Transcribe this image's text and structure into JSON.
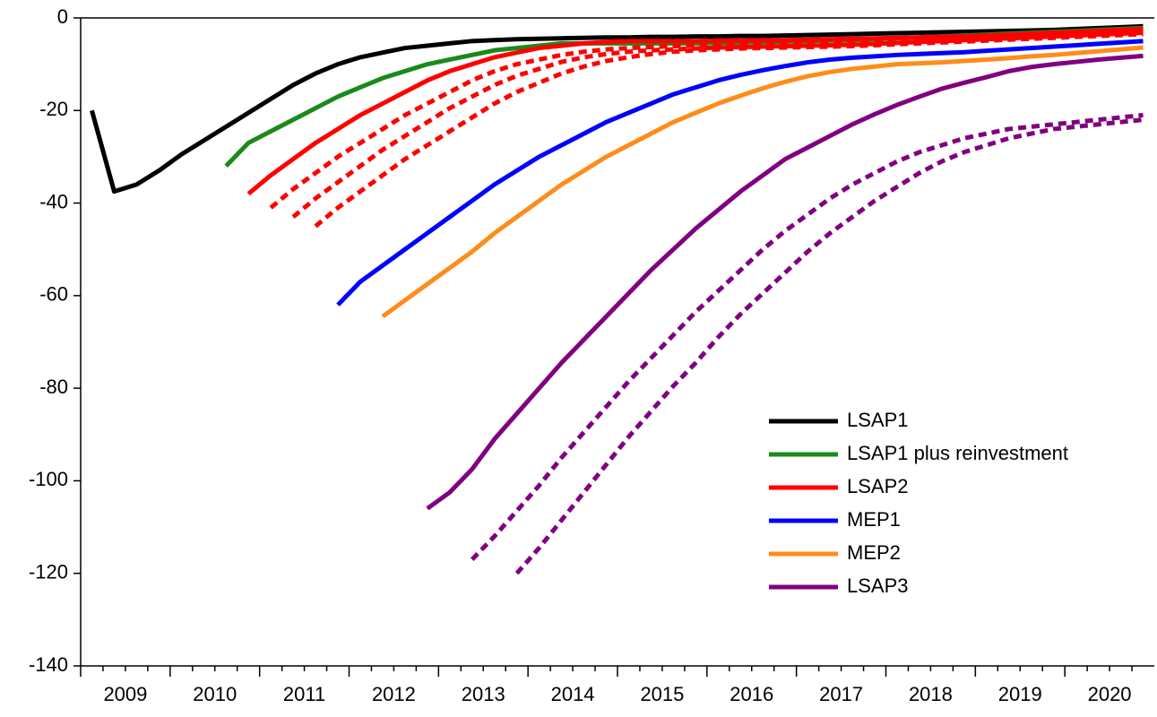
{
  "chart_data": {
    "type": "line",
    "x": [
      2009.125,
      2009.375,
      2009.625,
      2009.875,
      2010.125,
      2010.375,
      2010.625,
      2010.875,
      2011.125,
      2011.375,
      2011.625,
      2011.875,
      2012.125,
      2012.375,
      2012.625,
      2012.875,
      2013.125,
      2013.375,
      2013.625,
      2013.875,
      2014.125,
      2014.375,
      2014.625,
      2014.875,
      2015.125,
      2015.375,
      2015.625,
      2015.875,
      2016.125,
      2016.375,
      2016.625,
      2016.875,
      2017.125,
      2017.375,
      2017.625,
      2017.875,
      2018.125,
      2018.375,
      2018.625,
      2018.875,
      2019.125,
      2019.375,
      2019.625,
      2019.875,
      2020.125,
      2020.375,
      2020.625,
      2020.875
    ],
    "xlim": [
      2009,
      2021
    ],
    "xticks": [
      2009,
      2010,
      2011,
      2012,
      2013,
      2014,
      2015,
      2016,
      2017,
      2018,
      2019,
      2020
    ],
    "ylim": [
      -140,
      0
    ],
    "yticks": [
      -140,
      -120,
      -100,
      -80,
      -60,
      -40,
      -20,
      0
    ],
    "grid": false,
    "legend": "lower right",
    "series": [
      {
        "name": "LSAP1",
        "color": "#000000",
        "values": [
          -20,
          -37.5,
          -36,
          -33,
          -29.5,
          -26.5,
          -23.5,
          -20.5,
          -17.5,
          -14.5,
          -12,
          -10,
          -8.5,
          -7.5,
          -6.5,
          -6,
          -5.5,
          -5,
          -4.8,
          -4.6,
          -4.5,
          -4.4,
          -4.3,
          -4.2,
          -4.2,
          -4.1,
          -4.1,
          -4,
          -4,
          -3.9,
          -3.9,
          -3.8,
          -3.7,
          -3.6,
          -3.5,
          -3.4,
          -3.3,
          -3.2,
          -3.1,
          -3,
          -2.9,
          -2.8,
          -2.7,
          -2.6,
          -2.4,
          -2.2,
          -2,
          -1.8
        ]
      },
      {
        "name": "LSAP1 plus reinvestment",
        "color": "#1a8a1a",
        "values": [
          null,
          null,
          null,
          null,
          null,
          null,
          -32,
          -27,
          -24.5,
          -22,
          -19.5,
          -17,
          -15,
          -13,
          -11.5,
          -10,
          -9,
          -8,
          -7,
          -6.5,
          -6,
          -5.5,
          -5.5,
          -5.5,
          -5.5,
          -5.5,
          -5.5,
          -5.5,
          -5.4,
          -5.3,
          -5.2,
          -5.1,
          -5,
          -4.9,
          -4.8,
          -4.6,
          -4.4,
          -4.2,
          -4,
          -3.8,
          -3.6,
          -3.4,
          -3.2,
          -3,
          -2.8,
          -2.6,
          -2.4,
          -2.2
        ]
      },
      {
        "name": "LSAP2",
        "color": "#ff0000",
        "values": [
          null,
          null,
          null,
          null,
          null,
          null,
          null,
          -38,
          -34,
          -30.5,
          -27,
          -24,
          -21,
          -18.5,
          -16,
          -13.5,
          -11.5,
          -10,
          -8.5,
          -7.5,
          -6.5,
          -6,
          -5.5,
          -5.2,
          -5,
          -5,
          -5,
          -5,
          -4.9,
          -4.9,
          -4.8,
          -4.8,
          -4.7,
          -4.6,
          -4.5,
          -4.4,
          -4.3,
          -4.2,
          -4.1,
          -4,
          -3.8,
          -3.6,
          -3.4,
          -3.2,
          -3,
          -2.8,
          -2.6,
          -2.4
        ]
      },
      {
        "color": "#ff0000",
        "dashed": true,
        "values": [
          null,
          null,
          null,
          null,
          null,
          null,
          null,
          null,
          -41,
          -37,
          -33.5,
          -30,
          -27,
          -24,
          -21,
          -18.5,
          -16,
          -13.5,
          -11.5,
          -10,
          -9,
          -8,
          -7.3,
          -6.8,
          -6.5,
          -6.3,
          -6.1,
          -6,
          -5.9,
          -5.8,
          -5.7,
          -5.6,
          -5.5,
          -5.4,
          -5.3,
          -5.2,
          -5,
          -4.8,
          -4.6,
          -4.4,
          -4.2,
          -4,
          -3.8,
          -3.6,
          -3.4,
          -3.2,
          -3,
          -2.8
        ]
      },
      {
        "color": "#ff0000",
        "dashed": true,
        "values": [
          null,
          null,
          null,
          null,
          null,
          null,
          null,
          null,
          null,
          -43,
          -39,
          -35.5,
          -32,
          -28.5,
          -25.5,
          -22.5,
          -19.5,
          -17,
          -14.5,
          -12.5,
          -11,
          -9.5,
          -8.5,
          -7.8,
          -7.3,
          -7,
          -6.8,
          -6.6,
          -6.4,
          -6.3,
          -6.2,
          -6.1,
          -6,
          -5.9,
          -5.8,
          -5.6,
          -5.4,
          -5.2,
          -5,
          -4.8,
          -4.6,
          -4.4,
          -4.2,
          -4,
          -3.8,
          -3.6,
          -3.4,
          -3.2
        ]
      },
      {
        "color": "#ff0000",
        "dashed": true,
        "values": [
          null,
          null,
          null,
          null,
          null,
          null,
          null,
          null,
          null,
          null,
          -45,
          -41,
          -37.5,
          -34,
          -30.5,
          -27.5,
          -24.5,
          -21.5,
          -18.5,
          -16,
          -14,
          -12,
          -10.5,
          -9.3,
          -8.5,
          -7.8,
          -7.3,
          -7,
          -6.8,
          -6.6,
          -6.5,
          -6.4,
          -6.3,
          -6.2,
          -6.1,
          -5.9,
          -5.7,
          -5.5,
          -5.3,
          -5.1,
          -4.9,
          -4.7,
          -4.5,
          -4.3,
          -4.1,
          -3.9,
          -3.7,
          -3.5
        ]
      },
      {
        "name": "MEP1",
        "color": "#0000ff",
        "values": [
          null,
          null,
          null,
          null,
          null,
          null,
          null,
          null,
          null,
          null,
          null,
          -62,
          -57,
          -53.5,
          -50,
          -46.5,
          -43,
          -39.5,
          -36,
          -33,
          -30,
          -27.5,
          -25,
          -22.5,
          -20.5,
          -18.5,
          -16.5,
          -15,
          -13.5,
          -12.3,
          -11.3,
          -10.4,
          -9.6,
          -9,
          -8.6,
          -8.3,
          -8,
          -7.8,
          -7.6,
          -7.4,
          -7.1,
          -6.8,
          -6.5,
          -6.2,
          -5.9,
          -5.6,
          -5.3,
          -5
        ]
      },
      {
        "name": "MEP2",
        "color": "#ff8c1a",
        "values": [
          null,
          null,
          null,
          null,
          null,
          null,
          null,
          null,
          null,
          null,
          null,
          null,
          null,
          -64.5,
          -61,
          -57.5,
          -54,
          -50.5,
          -46.5,
          -43,
          -39.5,
          -36,
          -33,
          -30,
          -27.5,
          -25,
          -22.5,
          -20.5,
          -18.5,
          -16.8,
          -15.2,
          -13.8,
          -12.6,
          -11.7,
          -11,
          -10.5,
          -10,
          -9.8,
          -9.6,
          -9.3,
          -9,
          -8.7,
          -8.3,
          -8,
          -7.6,
          -7.2,
          -6.8,
          -6.4
        ]
      },
      {
        "name": "LSAP3",
        "color": "#800080",
        "values": [
          null,
          null,
          null,
          null,
          null,
          null,
          null,
          null,
          null,
          null,
          null,
          null,
          null,
          null,
          null,
          -106,
          -102.5,
          -97.5,
          -91,
          -85.5,
          -80,
          -74.5,
          -69.5,
          -64.5,
          -59.5,
          -54.5,
          -50,
          -45.5,
          -41.5,
          -37.5,
          -34,
          -30.5,
          -28,
          -25.5,
          -23,
          -20.8,
          -18.8,
          -17,
          -15.3,
          -14,
          -12.8,
          -11.5,
          -10.6,
          -10,
          -9.5,
          -9,
          -8.6,
          -8.2
        ]
      },
      {
        "color": "#800080",
        "dashed": true,
        "values": [
          null,
          null,
          null,
          null,
          null,
          null,
          null,
          null,
          null,
          null,
          null,
          null,
          null,
          null,
          null,
          null,
          null,
          -117,
          -112,
          -106.5,
          -101,
          -95,
          -89.5,
          -84,
          -78.5,
          -73.5,
          -68.5,
          -63.5,
          -59,
          -54.5,
          -50,
          -46,
          -42.5,
          -39,
          -36,
          -33.5,
          -31,
          -29,
          -27.5,
          -26,
          -25,
          -24,
          -23.5,
          -23,
          -22.5,
          -22,
          -21.5,
          -21
        ]
      },
      {
        "color": "#800080",
        "dashed": true,
        "values": [
          null,
          null,
          null,
          null,
          null,
          null,
          null,
          null,
          null,
          null,
          null,
          null,
          null,
          null,
          null,
          null,
          null,
          null,
          null,
          -120,
          -114.5,
          -108.5,
          -102.5,
          -96.5,
          -90.5,
          -85,
          -79.5,
          -74.5,
          -69,
          -64,
          -59.5,
          -55,
          -50.5,
          -46.5,
          -43,
          -39.5,
          -36.5,
          -33.5,
          -31,
          -29,
          -27.5,
          -26,
          -25,
          -24,
          -23.5,
          -23,
          -22.5,
          -22
        ]
      }
    ]
  }
}
